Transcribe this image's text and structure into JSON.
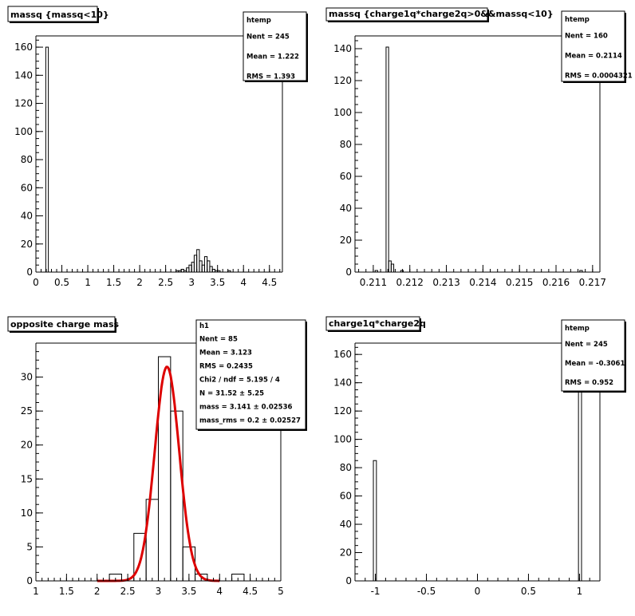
{
  "chart_data": [
    {
      "type": "bar",
      "title": "massq {massq<10}",
      "xlim": [
        0,
        4.75
      ],
      "ylim": [
        0,
        168
      ],
      "x_ticks": [
        "0",
        "0.5",
        "1",
        "1.5",
        "2",
        "2.5",
        "3",
        "3.5",
        "4",
        "4.5"
      ],
      "x_tick_values": [
        0,
        0.5,
        1,
        1.5,
        2,
        2.5,
        3,
        3.5,
        4,
        4.5
      ],
      "y_ticks": [
        "0",
        "20",
        "40",
        "60",
        "80",
        "100",
        "120",
        "140",
        "160"
      ],
      "y_tick_values": [
        0,
        20,
        40,
        60,
        80,
        100,
        120,
        140,
        160
      ],
      "bins": [
        {
          "x0": 0.19,
          "x1": 0.24,
          "value": 160
        },
        {
          "x0": 2.7,
          "x1": 2.75,
          "value": 1
        },
        {
          "x0": 2.75,
          "x1": 2.8,
          "value": 1
        },
        {
          "x0": 2.8,
          "x1": 2.85,
          "value": 2
        },
        {
          "x0": 2.85,
          "x1": 2.9,
          "value": 1
        },
        {
          "x0": 2.9,
          "x1": 2.95,
          "value": 3
        },
        {
          "x0": 2.95,
          "x1": 3.0,
          "value": 5
        },
        {
          "x0": 3.0,
          "x1": 3.05,
          "value": 7
        },
        {
          "x0": 3.05,
          "x1": 3.1,
          "value": 12
        },
        {
          "x0": 3.1,
          "x1": 3.15,
          "value": 16
        },
        {
          "x0": 3.15,
          "x1": 3.2,
          "value": 8
        },
        {
          "x0": 3.2,
          "x1": 3.25,
          "value": 5
        },
        {
          "x0": 3.25,
          "x1": 3.3,
          "value": 11
        },
        {
          "x0": 3.3,
          "x1": 3.35,
          "value": 8
        },
        {
          "x0": 3.35,
          "x1": 3.4,
          "value": 4
        },
        {
          "x0": 3.4,
          "x1": 3.45,
          "value": 2
        },
        {
          "x0": 3.45,
          "x1": 3.5,
          "value": 1
        },
        {
          "x0": 3.5,
          "x1": 3.55,
          "value": 1
        },
        {
          "x0": 3.7,
          "x1": 3.75,
          "value": 1
        }
      ],
      "stats": {
        "name": "htemp",
        "lines": [
          "Nent  = 245",
          "Mean  =  1.222",
          "RMS   =  1.393"
        ]
      }
    },
    {
      "type": "bar",
      "title": "massq {charge1q*charge2q>0&&massq<10}",
      "xlim": [
        0.2105,
        0.2172
      ],
      "ylim": [
        0,
        148
      ],
      "x_ticks": [
        "0.211",
        "0.212",
        "0.213",
        "0.214",
        "0.215",
        "0.216",
        "0.217"
      ],
      "x_tick_values": [
        0.211,
        0.212,
        0.213,
        0.214,
        0.215,
        0.216,
        0.217
      ],
      "y_ticks": [
        "0",
        "20",
        "40",
        "60",
        "80",
        "100",
        "120",
        "140"
      ],
      "y_tick_values": [
        0,
        20,
        40,
        60,
        80,
        100,
        120,
        140
      ],
      "bins": [
        {
          "x0": 0.21105,
          "x1": 0.21112,
          "value": 1
        },
        {
          "x0": 0.21135,
          "x1": 0.21142,
          "value": 141
        },
        {
          "x0": 0.21142,
          "x1": 0.21149,
          "value": 7
        },
        {
          "x0": 0.21149,
          "x1": 0.21156,
          "value": 5
        },
        {
          "x0": 0.21175,
          "x1": 0.21182,
          "value": 1
        },
        {
          "x0": 0.21665,
          "x1": 0.21672,
          "value": 1
        }
      ],
      "stats": {
        "name": "htemp",
        "lines": [
          "Nent = 160",
          "Mean = 0.2114",
          "RMS  = 0.0004321"
        ]
      }
    },
    {
      "type": "bar",
      "title": "opposite charge mass",
      "xlim": [
        1,
        5
      ],
      "ylim": [
        0,
        35
      ],
      "x_ticks": [
        "1",
        "1.5",
        "2",
        "2.5",
        "3",
        "3.5",
        "4",
        "4.5",
        "5"
      ],
      "x_tick_values": [
        1,
        1.5,
        2,
        2.5,
        3,
        3.5,
        4,
        4.5,
        5
      ],
      "y_ticks": [
        "0",
        "5",
        "10",
        "15",
        "20",
        "25",
        "30"
      ],
      "y_tick_values": [
        0,
        5,
        10,
        15,
        20,
        25,
        30
      ],
      "bins": [
        {
          "x0": 2.0,
          "x1": 2.2,
          "value": 0
        },
        {
          "x0": 2.2,
          "x1": 2.4,
          "value": 1
        },
        {
          "x0": 2.4,
          "x1": 2.6,
          "value": 0
        },
        {
          "x0": 2.6,
          "x1": 2.8,
          "value": 7
        },
        {
          "x0": 2.8,
          "x1": 3.0,
          "value": 12
        },
        {
          "x0": 3.0,
          "x1": 3.2,
          "value": 33
        },
        {
          "x0": 3.2,
          "x1": 3.4,
          "value": 25
        },
        {
          "x0": 3.4,
          "x1": 3.6,
          "value": 5
        },
        {
          "x0": 3.6,
          "x1": 3.8,
          "value": 1
        },
        {
          "x0": 3.8,
          "x1": 4.0,
          "value": 0
        },
        {
          "x0": 4.0,
          "x1": 4.2,
          "value": 0
        },
        {
          "x0": 4.2,
          "x1": 4.4,
          "value": 1
        },
        {
          "x0": 4.4,
          "x1": 4.6,
          "value": 0
        }
      ],
      "fit": {
        "type": "gaussian",
        "amplitude": 31.52,
        "mean": 3.141,
        "sigma": 0.2,
        "x_range": [
          2.0,
          4.0
        ],
        "color": "#dd0000"
      },
      "stats": {
        "name": "h1",
        "lines": [
          "Nent = 85",
          "Mean  =  3.123",
          "RMS   = 0.2435",
          "Chi2 / ndf = 5.195 / 4",
          "N         = 31.52 ±  5.25",
          "mass      = 3.141  ± 0.02536",
          "mass_rms =   0.2  ± 0.02527"
        ]
      }
    },
    {
      "type": "bar",
      "title": "charge1q*charge2q",
      "xlim": [
        -1.2,
        1.2
      ],
      "ylim": [
        0,
        168
      ],
      "x_ticks": [
        "-1",
        "-0.5",
        "0",
        "0.5",
        "1"
      ],
      "x_tick_values": [
        -1,
        -0.5,
        0,
        0.5,
        1
      ],
      "y_ticks": [
        "0",
        "20",
        "40",
        "60",
        "80",
        "100",
        "120",
        "140",
        "160"
      ],
      "y_tick_values": [
        0,
        20,
        40,
        60,
        80,
        100,
        120,
        140,
        160
      ],
      "bins": [
        {
          "x0": -1.02,
          "x1": -0.99,
          "value": 85
        },
        {
          "x0": 0.99,
          "x1": 1.02,
          "value": 160
        }
      ],
      "stats": {
        "name": "htemp",
        "lines": [
          "Nent  = 245",
          "Mean  = -0.3061",
          "RMS   =  0.952"
        ]
      }
    }
  ],
  "colors": {
    "axis": "#000000",
    "hist": "#000000",
    "fit": "#dd0000",
    "background": "#ffffff"
  }
}
